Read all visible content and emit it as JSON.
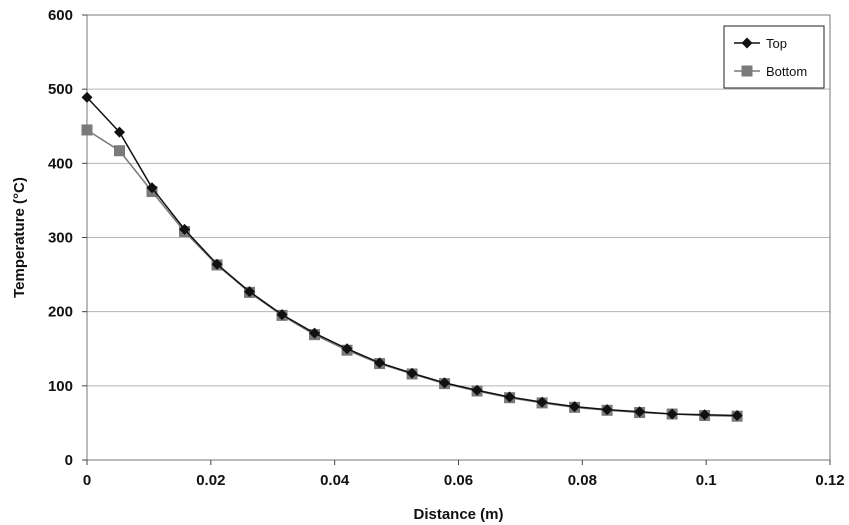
{
  "chart_data": {
    "type": "line",
    "xlabel": "Distance (m)",
    "ylabel": "Temperature (°C)",
    "xlim": [
      0,
      0.12
    ],
    "ylim": [
      0,
      600
    ],
    "xticks": [
      "0",
      "0.02",
      "0.04",
      "0.06",
      "0.08",
      "0.1",
      "0.12"
    ],
    "yticks": [
      "0",
      "100",
      "200",
      "300",
      "400",
      "500",
      "600"
    ],
    "grid": "horizontal",
    "legend_position": "top-right",
    "series": [
      {
        "name": "Top",
        "marker": "diamond",
        "color": "#111111",
        "x": [
          0,
          0.00525,
          0.0105,
          0.01575,
          0.021,
          0.02625,
          0.0315,
          0.03675,
          0.042,
          0.04725,
          0.0525,
          0.05775,
          0.063,
          0.06825,
          0.0735,
          0.07875,
          0.084,
          0.08925,
          0.0945,
          0.09975,
          0.105
        ],
        "values": [
          489,
          442,
          367,
          311,
          264,
          227,
          196,
          171,
          150,
          131,
          117,
          104,
          94,
          85,
          78,
          72,
          68,
          65,
          62,
          61,
          60
        ]
      },
      {
        "name": "Bottom",
        "marker": "square",
        "color": "#7a7a7a",
        "x": [
          0,
          0.00525,
          0.0105,
          0.01575,
          0.021,
          0.02625,
          0.0315,
          0.03675,
          0.042,
          0.04725,
          0.0525,
          0.05775,
          0.063,
          0.06825,
          0.0735,
          0.07875,
          0.084,
          0.08925,
          0.0945,
          0.09975,
          0.105
        ],
        "values": [
          445,
          417,
          362,
          308,
          263,
          226,
          195,
          169,
          148,
          130,
          116,
          103,
          93,
          84,
          77,
          71,
          67,
          64,
          62,
          60,
          59
        ]
      }
    ]
  }
}
